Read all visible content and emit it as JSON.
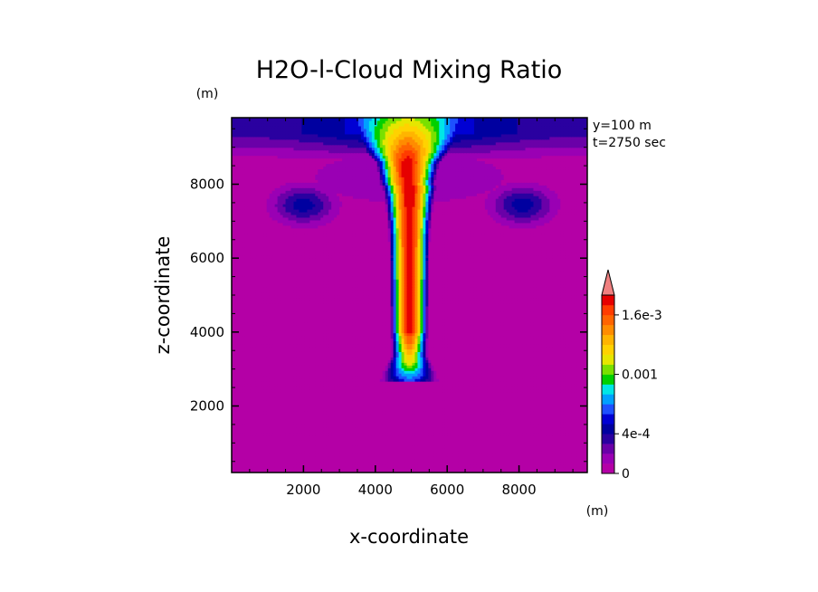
{
  "chart_data": {
    "type": "heatmap",
    "title": "H2O-l-Cloud Mixing Ratio",
    "xlabel": "x-coordinate",
    "ylabel": "z-coordinate",
    "x_unit": "(m)",
    "y_unit": "(m)",
    "xlim": [
      0,
      9900
    ],
    "ylim": [
      200,
      9800
    ],
    "x_ticks": [
      2000,
      4000,
      6000,
      8000
    ],
    "y_ticks": [
      2000,
      4000,
      6000,
      8000
    ],
    "annotations": [
      "y=100 m",
      "t=2750 sec"
    ],
    "colorbar": {
      "labels": [
        {
          "text": "0",
          "level": 0
        },
        {
          "text": "4e-4",
          "level": 0.0004
        },
        {
          "text": "0.001",
          "level": 0.001
        },
        {
          "text": "1.6e-3",
          "level": 0.0016
        }
      ],
      "levels": [
        0,
        0.0001,
        0.0002,
        0.0003,
        0.0004,
        0.0005,
        0.0006,
        0.0007,
        0.0008,
        0.0009,
        0.001,
        0.0011,
        0.0012,
        0.0013,
        0.0014,
        0.0015,
        0.0016,
        0.0017,
        0.0018
      ],
      "colors": [
        "#b400a6",
        "#9a00b4",
        "#6a00a8",
        "#2a00a0",
        "#0000a0",
        "#0000d4",
        "#1e50ff",
        "#00a0ff",
        "#00e6e6",
        "#00d000",
        "#7ae000",
        "#e6e600",
        "#ffd200",
        "#ffb400",
        "#ff8c00",
        "#ff6400",
        "#ff3c00",
        "#e60000",
        "#f08080"
      ],
      "extend": "max"
    },
    "field_features": [
      {
        "feature": "core",
        "x_center": 4950,
        "z_range": [
          4000,
          9200
        ],
        "max_level": 0.0018
      },
      {
        "feature": "base",
        "z": 2700,
        "x_range": [
          3650,
          6300
        ]
      },
      {
        "feature": "anvil",
        "z_range": [
          8600,
          9800
        ],
        "x_range": [
          0,
          9900
        ]
      },
      {
        "feature": "left-eddy",
        "x_center": 2000,
        "z_center": 7400,
        "level": 0.0004
      },
      {
        "feature": "right-eddy",
        "x_center": 8100,
        "z_center": 7400,
        "level": 0.0004
      }
    ]
  }
}
